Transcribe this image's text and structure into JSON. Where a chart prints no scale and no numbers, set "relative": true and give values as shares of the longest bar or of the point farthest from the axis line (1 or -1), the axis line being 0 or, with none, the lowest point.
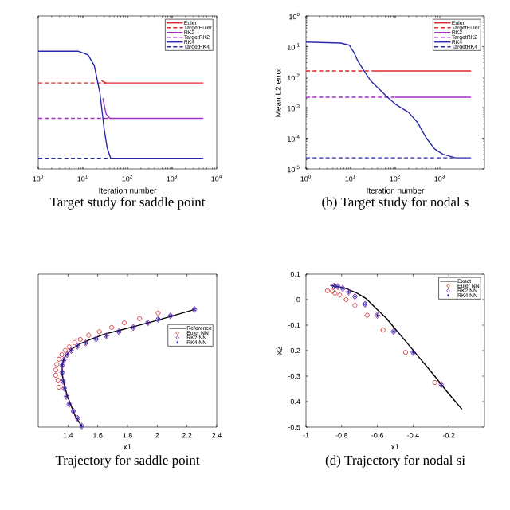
{
  "chart_data": [
    {
      "type": "line",
      "title": "Target study for saddle point",
      "xlabel": "Iteration number",
      "log": "x",
      "relative": true,
      "legend": "top right",
      "xlim": [
        1,
        10000
      ],
      "xticks": [
        {
          "value": 1,
          "label": "10$^{0}$"
        },
        {
          "value": 10,
          "label": "10$^{1}$"
        },
        {
          "value": 100,
          "label": "10$^{2}$"
        },
        {
          "value": 1000,
          "label": "10$^{3}$"
        },
        {
          "value": 10000,
          "label": "10$^{4}$"
        }
      ],
      "series": [
        {
          "name": "Euler",
          "color": "#e02828",
          "line_style": "solid",
          "x": [
            26,
            33,
            5000
          ],
          "values": [
            0.75,
            0.73,
            0.73
          ]
        },
        {
          "name": "TargetEuler",
          "color": "#e02828",
          "line_style": "dashed",
          "x": [
            1,
            33
          ],
          "values": [
            0.73,
            0.73
          ]
        },
        {
          "name": "RK2",
          "color": "#a030c0",
          "line_style": "solid",
          "x": [
            28,
            33,
            40,
            5000
          ],
          "values": [
            0.6,
            0.47,
            0.43,
            0.43
          ]
        },
        {
          "name": "TargetRK2",
          "color": "#a030c0",
          "line_style": "dashed",
          "x": [
            1,
            40
          ],
          "values": [
            0.43,
            0.43
          ]
        },
        {
          "name": "RK4",
          "color": "#2a2aa8",
          "line_style": "solid",
          "x": [
            1,
            8,
            13,
            18,
            24,
            30,
            35,
            42,
            5000
          ],
          "values": [
            1,
            1,
            0.97,
            0.88,
            0.65,
            0.34,
            0.18,
            0.09,
            0.09
          ]
        },
        {
          "name": "TargetRK4",
          "color": "#2a2aa8",
          "line_style": "dashed",
          "x": [
            1,
            42
          ],
          "values": [
            0.09,
            0.09
          ]
        }
      ]
    },
    {
      "type": "line",
      "title": "(b) Target study for nodal s",
      "xlabel": "Iteration number",
      "ylabel": "Mean L2 error",
      "log": "xy",
      "legend": "top right",
      "xlim": [
        1,
        10000
      ],
      "xticks": [
        {
          "value": 1,
          "label": "10$^{0}$"
        },
        {
          "value": 10,
          "label": "10$^{1}$"
        },
        {
          "value": 100,
          "label": "10$^{2}$"
        },
        {
          "value": 1000,
          "label": "10$^{3}$"
        }
      ],
      "ylim": [
        1e-05,
        1
      ],
      "yticks": [
        {
          "value": 1e-05,
          "label": "10$^{-5}$"
        },
        {
          "value": 0.0001,
          "label": "10$^{-4}$"
        },
        {
          "value": 0.001,
          "label": "10$^{-3}$"
        },
        {
          "value": 0.01,
          "label": "10$^{-2}$"
        },
        {
          "value": 0.1,
          "label": "10$^{-1}$"
        },
        {
          "value": 1,
          "label": "10$^{0}$"
        }
      ],
      "series": [
        {
          "name": "Euler",
          "color": "#e02828",
          "line_style": "solid",
          "x": [
            30,
            5000
          ],
          "values": [
            0.016,
            0.016
          ]
        },
        {
          "name": "TargetEuler",
          "color": "#e02828",
          "line_style": "dashed",
          "x": [
            1,
            30
          ],
          "values": [
            0.016,
            0.016
          ]
        },
        {
          "name": "RK2",
          "color": "#a030c0",
          "line_style": "solid",
          "x": [
            100,
            5000
          ],
          "values": [
            0.0022,
            0.0022
          ]
        },
        {
          "name": "TargetRK2",
          "color": "#a030c0",
          "line_style": "dashed",
          "x": [
            1,
            100
          ],
          "values": [
            0.0022,
            0.0022
          ]
        },
        {
          "name": "RK4",
          "color": "#2a2aa8",
          "line_style": "solid",
          "x": [
            1,
            6,
            9.4,
            11.7,
            14.5,
            20,
            28,
            44,
            67,
            105,
            200,
            316,
            490,
            760,
            1170,
            2250,
            5000
          ],
          "values": [
            0.14,
            0.13,
            0.11,
            0.066,
            0.034,
            0.016,
            0.0077,
            0.004,
            0.0022,
            0.00125,
            0.0007,
            0.00033,
            0.000105,
            4.5e-05,
            3e-05,
            2.3e-05,
            2.3e-05
          ]
        },
        {
          "name": "TargetRK4",
          "color": "#2a2aa8",
          "line_style": "dashed",
          "x": [
            1,
            2250
          ],
          "values": [
            2.3e-05,
            2.3e-05
          ]
        }
      ]
    },
    {
      "type": "line",
      "title": "Trajectory for saddle point",
      "xlabel": "x1",
      "relative": true,
      "legend": "right",
      "xlim": [
        1.2,
        2.4
      ],
      "xticks": [
        1.4,
        1.6,
        1.8,
        2,
        2.2,
        2.4
      ],
      "series": [
        {
          "name": "Reference",
          "type": "line",
          "color": "#000000",
          "marker": "none",
          "x": [
            1.492,
            1.45,
            1.417,
            1.394,
            1.375,
            1.361,
            1.361,
            1.381,
            1.422,
            1.478,
            1.561,
            1.644,
            1.756,
            1.867,
            1.978,
            2.089,
            2.25
          ],
          "values": [
            0.009,
            0.09,
            0.195,
            0.27,
            0.36,
            0.45,
            0.54,
            0.6,
            0.66,
            0.706,
            0.75,
            0.79,
            0.826,
            0.862,
            0.9,
            0.94,
            1.0
          ]
        },
        {
          "name": "Euler NN",
          "type": "scatter",
          "color": "#d03030",
          "marker": "circle",
          "x": [
            1.339,
            1.333,
            1.317,
            1.317,
            1.325,
            1.339,
            1.358,
            1.381,
            1.408,
            1.444,
            1.483,
            1.539,
            1.611,
            1.694,
            1.778,
            1.881,
            2.006
          ],
          "values": [
            0.339,
            0.399,
            0.441,
            0.486,
            0.532,
            0.577,
            0.616,
            0.652,
            0.682,
            0.718,
            0.745,
            0.781,
            0.811,
            0.847,
            0.886,
            0.922,
            0.97
          ]
        },
        {
          "name": "RK2 NN",
          "type": "scatter",
          "color": "#9030b0",
          "marker": "diamond",
          "x": [
            1.492,
            1.464,
            1.436,
            1.408,
            1.389,
            1.375,
            1.367,
            1.361,
            1.361,
            1.372,
            1.394,
            1.422,
            1.464,
            1.519,
            1.589,
            1.658,
            1.742,
            1.839,
            1.936,
            2.006,
            2.089,
            2.25
          ],
          "values": [
            0.009,
            0.075,
            0.135,
            0.195,
            0.261,
            0.33,
            0.39,
            0.465,
            0.525,
            0.571,
            0.616,
            0.652,
            0.688,
            0.715,
            0.748,
            0.775,
            0.811,
            0.847,
            0.886,
            0.916,
            0.946,
            1.0
          ]
        },
        {
          "name": "RK4 NN",
          "type": "scatter",
          "color": "#2020a0",
          "marker": "cross",
          "x": [
            1.492,
            1.464,
            1.436,
            1.408,
            1.389,
            1.375,
            1.367,
            1.361,
            1.361,
            1.372,
            1.394,
            1.422,
            1.464,
            1.519,
            1.589,
            1.658,
            1.742,
            1.839,
            1.936,
            2.006,
            2.089,
            2.25
          ],
          "values": [
            0.009,
            0.075,
            0.135,
            0.195,
            0.261,
            0.33,
            0.39,
            0.465,
            0.525,
            0.571,
            0.616,
            0.652,
            0.688,
            0.715,
            0.748,
            0.775,
            0.811,
            0.847,
            0.886,
            0.916,
            0.946,
            1.0
          ]
        }
      ]
    },
    {
      "type": "line",
      "title": "(d) Trajectory for nodal si",
      "xlabel": "x1",
      "ylabel": "x2",
      "legend": "top right",
      "xlim": [
        -1,
        0
      ],
      "xticks": [
        -1,
        -0.8,
        -0.6,
        -0.4,
        -0.2
      ],
      "ylim": [
        -0.5,
        0.1
      ],
      "yticks": [
        -0.5,
        -0.4,
        -0.3,
        -0.2,
        -0.1,
        0,
        0.1
      ],
      "series": [
        {
          "name": "Exact",
          "type": "line",
          "color": "#000000",
          "marker": "none",
          "x": [
            -0.863,
            -0.821,
            -0.779,
            -0.716,
            -0.663,
            -0.611,
            -0.547,
            -0.505,
            -0.442,
            -0.379,
            -0.295,
            -0.211,
            -0.126
          ],
          "values": [
            0.056,
            0.051,
            0.044,
            0.026,
            0.004,
            -0.032,
            -0.075,
            -0.111,
            -0.163,
            -0.216,
            -0.286,
            -0.36,
            -0.43
          ]
        },
        {
          "name": "Euler NN",
          "type": "scatter",
          "color": "#d03030",
          "marker": "circle",
          "x": [
            -0.88,
            -0.853,
            -0.838,
            -0.811,
            -0.775,
            -0.726,
            -0.657,
            -0.568,
            -0.442,
            -0.278
          ],
          "values": [
            0.035,
            0.033,
            0.026,
            0.018,
            0.0,
            -0.023,
            -0.061,
            -0.119,
            -0.207,
            -0.325
          ]
        },
        {
          "name": "RK2 NN",
          "type": "scatter",
          "color": "#9030b0",
          "marker": "diamond",
          "x": [
            -0.842,
            -0.821,
            -0.794,
            -0.762,
            -0.726,
            -0.669,
            -0.6,
            -0.509,
            -0.4,
            -0.242
          ],
          "values": [
            0.053,
            0.051,
            0.044,
            0.03,
            0.012,
            -0.018,
            -0.061,
            -0.125,
            -0.207,
            -0.333
          ]
        },
        {
          "name": "RK4 NN",
          "type": "scatter",
          "color": "#2020a0",
          "marker": "cross",
          "x": [
            -0.842,
            -0.821,
            -0.794,
            -0.762,
            -0.726,
            -0.669,
            -0.6,
            -0.509,
            -0.4,
            -0.242
          ],
          "values": [
            0.053,
            0.051,
            0.044,
            0.03,
            0.012,
            -0.018,
            -0.061,
            -0.125,
            -0.207,
            -0.333
          ]
        }
      ]
    }
  ]
}
